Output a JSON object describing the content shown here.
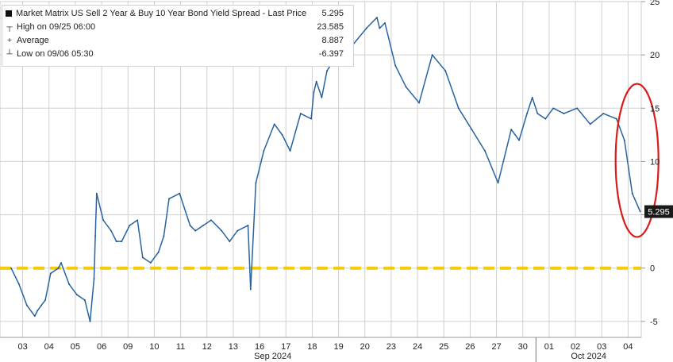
{
  "legend": {
    "main": {
      "label": "Market Matrix US Sell 2 Year & Buy 10 Year Bond Yield Spread - Last Price",
      "value": "5.295"
    },
    "high": {
      "label": "High on 09/25 06:00",
      "value": "23.585"
    },
    "avg": {
      "label": "Average",
      "value": "8.887"
    },
    "low": {
      "label": "Low on 09/06 05:30",
      "value": "-6.397"
    }
  },
  "last_price_tag": "5.295",
  "colors": {
    "line": "#3a7fc4",
    "zero_line": "#f2cc0c",
    "circle": "#d81c1c",
    "grid": "#d0d0d0",
    "tag_bg": "#1a1a1a",
    "tag_text": "#ffffff"
  },
  "chart_data": {
    "type": "line",
    "title": "Market Matrix US Sell 2 Year & Buy 10 Year Bond Yield Spread - Last Price",
    "xlabel": "",
    "ylabel": "",
    "ylim": [
      -6.5,
      25
    ],
    "y_ticks": [
      "25",
      "20",
      "15",
      "10",
      "5",
      "0",
      "-5"
    ],
    "y_tick_values": [
      25,
      20,
      15,
      10,
      5,
      0,
      -5
    ],
    "x_tick_labels": [
      "03",
      "04",
      "05",
      "06",
      "09",
      "10",
      "11",
      "12",
      "13",
      "16",
      "17",
      "18",
      "19",
      "20",
      "23",
      "24",
      "25",
      "26",
      "27",
      "30",
      "01",
      "02",
      "03",
      "04"
    ],
    "month_labels": [
      "Sep 2024",
      "Oct 2024"
    ],
    "series": [
      {
        "name": "Market Matrix US Sell 2 Year & Buy 10 Year Bond Yield Spread - Last Price",
        "x": [
          0,
          0.3,
          0.6,
          0.9,
          1.0,
          1.15,
          1.3,
          1.5,
          1.8,
          1.9,
          2.2,
          2.5,
          2.8,
          3.0,
          3.15,
          3.2,
          3.25,
          3.5,
          3.8,
          4.0,
          4.2,
          4.5,
          4.8,
          5.0,
          5.3,
          5.6,
          5.8,
          6.0,
          6.4,
          6.8,
          7.0,
          7.3,
          7.6,
          8.0,
          8.3,
          8.6,
          9.0,
          9.1,
          9.3,
          9.6,
          10.0,
          10.3,
          10.6,
          11.0,
          11.4,
          11.5,
          11.6,
          11.8,
          12.0,
          12.5,
          13.0,
          13.5,
          13.9,
          14.0,
          14.2,
          14.6,
          15.0,
          15.5,
          16.0,
          16.5,
          17.0,
          17.5,
          18.0,
          18.5,
          19.0,
          19.3,
          19.6,
          19.8,
          20.0,
          20.3,
          20.6,
          21.0,
          21.5,
          22.0,
          22.5,
          23.0,
          23.3,
          23.6,
          23.9
        ],
        "values": [
          0.0,
          -1.5,
          -3.5,
          -4.5,
          -4.0,
          -3.5,
          -3.0,
          -0.5,
          0.0,
          0.5,
          -1.5,
          -2.5,
          -3.0,
          -5.0,
          -1.0,
          3.0,
          7.0,
          4.5,
          3.5,
          2.5,
          2.5,
          4.0,
          4.5,
          1.0,
          0.5,
          1.5,
          3.0,
          6.5,
          7.0,
          4.0,
          3.5,
          4.0,
          4.5,
          3.5,
          2.5,
          3.5,
          4.0,
          -2.0,
          8.0,
          11.0,
          13.5,
          12.5,
          11.0,
          14.5,
          14.0,
          16.5,
          17.5,
          16.0,
          18.5,
          20.5,
          21.0,
          22.5,
          23.5,
          22.5,
          23.0,
          19.0,
          17.0,
          15.5,
          20.0,
          18.5,
          15.0,
          13.0,
          11.0,
          8.0,
          13.0,
          12.0,
          14.5,
          16.0,
          14.5,
          14.0,
          15.0,
          14.5,
          15.0,
          13.5,
          14.5,
          14.0,
          12.0,
          7.0,
          5.3
        ]
      }
    ],
    "reference_lines": [
      {
        "y": 0
      }
    ],
    "annotations": [
      {
        "type": "ellipse",
        "target": "last move lower"
      }
    ],
    "grid": true,
    "legend_position": "top-left"
  }
}
